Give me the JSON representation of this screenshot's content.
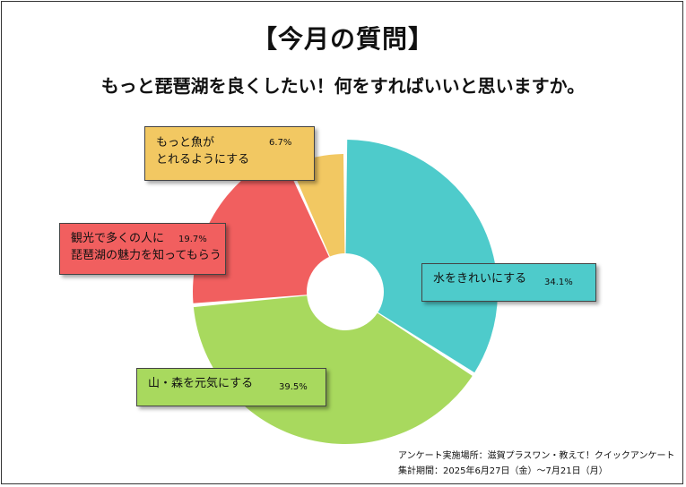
{
  "title": "【今月の質問】",
  "subtitle": "もっと琵琶湖を良くしたい！何をすればいいと思いますか。",
  "source": {
    "survey": "アンケート実施場所：滋賀プラスワン・教えて！クイックアンケート",
    "period": "集計期間：2025年6月27日（金）～7月21日（月）"
  },
  "chart_data": {
    "type": "pie",
    "title": "【今月の質問】",
    "slices": [
      {
        "label_lines": [
          "水をきれいにする"
        ],
        "value": 34.1,
        "value_text": "34.1%",
        "color": "#4ecbcb"
      },
      {
        "label_lines": [
          "山・森を元気にする"
        ],
        "value": 39.5,
        "value_text": "39.5%",
        "color": "#a8d95e"
      },
      {
        "label_lines": [
          "観光で多くの人に",
          "琵琶湖の魅力を知ってもらう"
        ],
        "value": 19.7,
        "value_text": "19.7%",
        "color": "#f15f5f"
      },
      {
        "label_lines": [
          "もっと魚が",
          "とれるようにする"
        ],
        "value": 6.7,
        "value_text": "6.7%",
        "color": "#f2c862"
      }
    ]
  }
}
